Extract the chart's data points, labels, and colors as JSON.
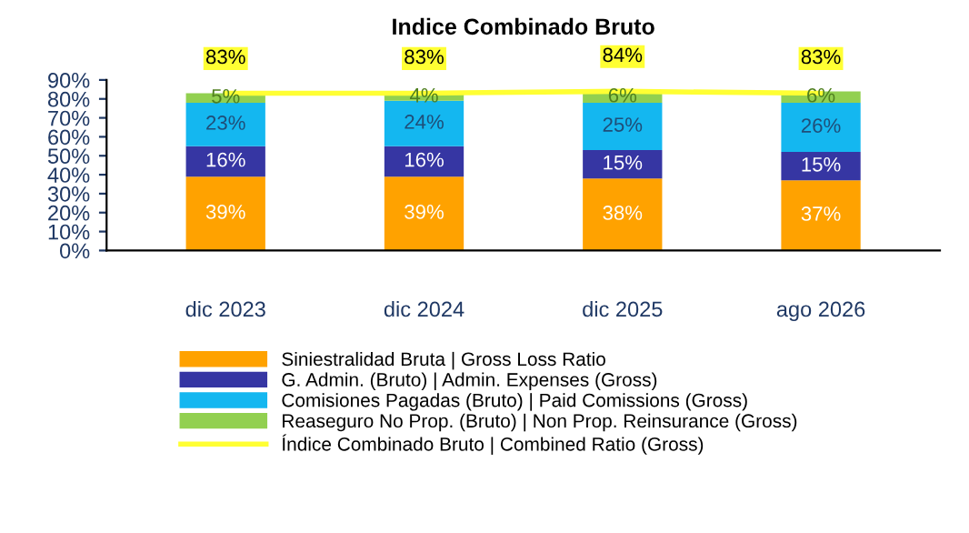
{
  "chart_data": {
    "type": "bar",
    "title": "Indice Combinado Bruto",
    "stacked": true,
    "categories": [
      "dic 2023",
      "dic 2024",
      "dic 2025",
      "ago 2026"
    ],
    "series": [
      {
        "name": "Siniestralidad Bruta | Gross Loss Ratio",
        "color": "#ffa200",
        "values": [
          39,
          39,
          38,
          37
        ],
        "value_labels": [
          "39%",
          "39%",
          "38%",
          "37%"
        ]
      },
      {
        "name": "G. Admin. (Bruto) | Admin. Expenses (Gross)",
        "color": "#3636a3",
        "values": [
          16,
          16,
          15,
          15
        ],
        "value_labels": [
          "16%",
          "16%",
          "15%",
          "15%"
        ]
      },
      {
        "name": "Comisiones Pagadas (Bruto) | Paid Comissions (Gross)",
        "color": "#14b7f0",
        "values": [
          23,
          24,
          25,
          26
        ],
        "value_labels": [
          "23%",
          "24%",
          "25%",
          "26%"
        ]
      },
      {
        "name": "Reaseguro No Prop. (Bruto) | Non Prop. Reinsurance (Gross)",
        "color": "#92d050",
        "values": [
          5,
          4,
          6,
          6
        ],
        "value_labels": [
          "5%",
          "4%",
          "6%",
          "6%"
        ]
      },
      {
        "name": "Índice Combinado Bruto | Combined Ratio (Gross)",
        "color": "#ffff33",
        "type": "line",
        "marker": "none",
        "values": [
          83,
          83,
          84,
          83
        ],
        "value_labels": [
          "83%",
          "83%",
          "84%",
          "83%"
        ]
      }
    ],
    "ylim": [
      0,
      90
    ],
    "yticks": [
      {
        "value": 0,
        "label": "0%"
      },
      {
        "value": 10,
        "label": "10%"
      },
      {
        "value": 20,
        "label": "20%"
      },
      {
        "value": 30,
        "label": "30%"
      },
      {
        "value": 40,
        "label": "40%"
      },
      {
        "value": 50,
        "label": "50%"
      },
      {
        "value": 60,
        "label": "60%"
      },
      {
        "value": 70,
        "label": "70%"
      },
      {
        "value": 80,
        "label": "80%"
      },
      {
        "value": 90,
        "label": "90%"
      }
    ],
    "grid": false,
    "legend": "bottom"
  }
}
